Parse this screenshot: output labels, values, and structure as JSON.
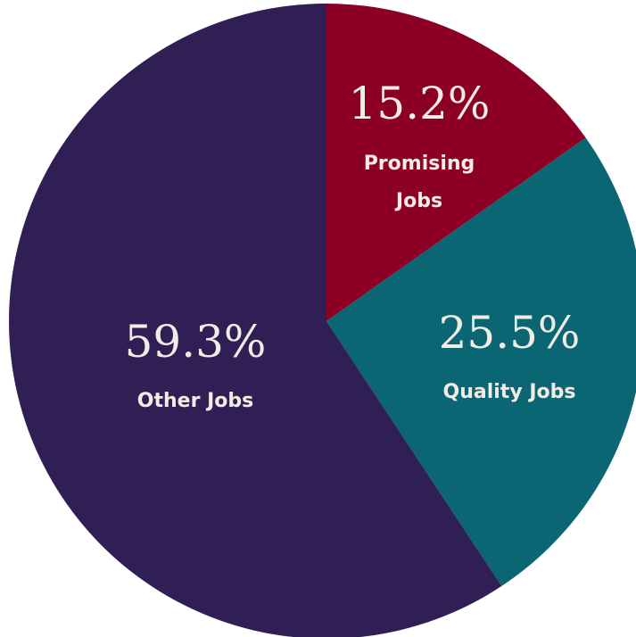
{
  "chart_data": {
    "type": "pie",
    "title": "",
    "start_angle_deg": 0,
    "direction": "clockwise",
    "slices": [
      {
        "label": "Promising Jobs",
        "label_lines": [
          "Promising",
          "Jobs"
        ],
        "value": 15.2,
        "value_text": "15.2%",
        "color": "#8c0026"
      },
      {
        "label": "Quality Jobs",
        "label_lines": [
          "Quality Jobs"
        ],
        "value": 25.5,
        "value_text": "25.5%",
        "color": "#0b6674"
      },
      {
        "label": "Other Jobs",
        "label_lines": [
          "Other Jobs"
        ],
        "value": 59.3,
        "value_text": "59.3%",
        "color": "#2f1f54"
      }
    ]
  },
  "colors": {
    "text": "#f2ece6",
    "background": "#ffffff"
  }
}
